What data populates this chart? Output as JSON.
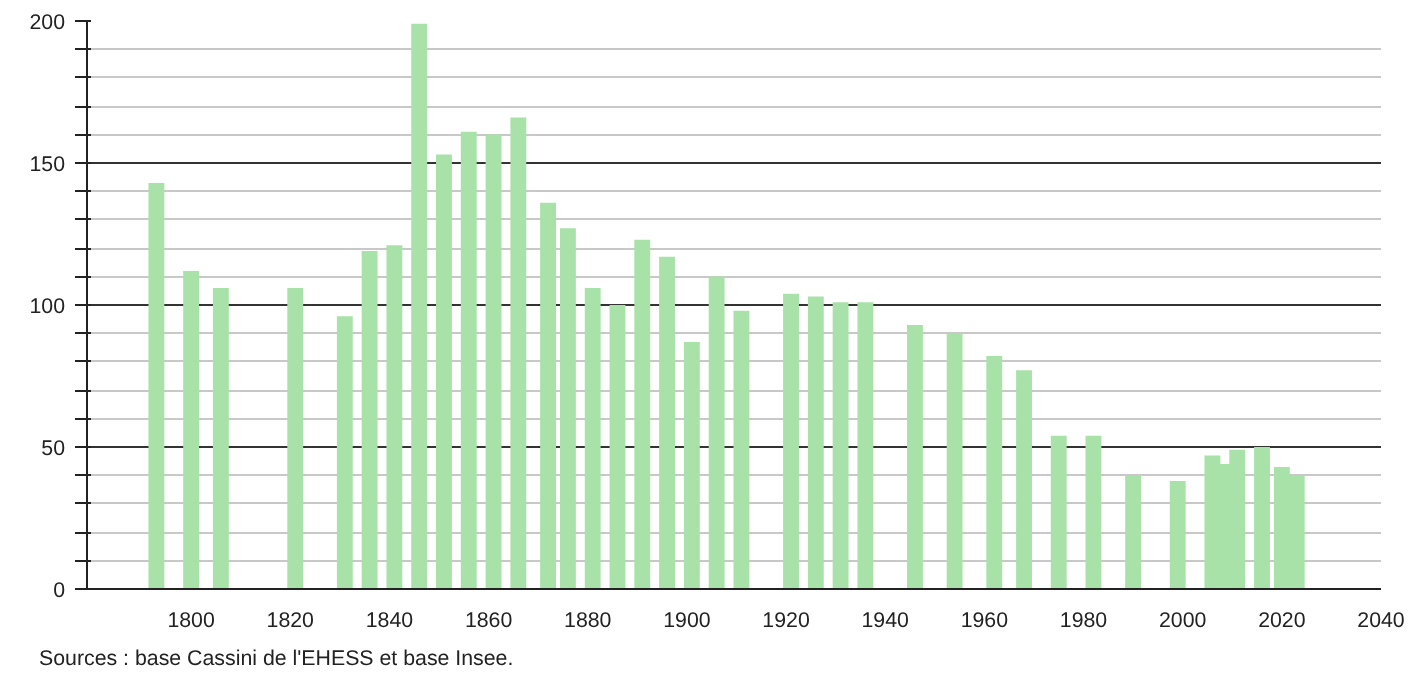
{
  "chart_data": {
    "type": "bar",
    "annotations": [
      "Sources : base Cassini de l'EHESS et base Insee."
    ],
    "x": [
      1793,
      1800,
      1806,
      1821,
      1831,
      1836,
      1841,
      1846,
      1851,
      1856,
      1861,
      1866,
      1872,
      1876,
      1881,
      1886,
      1891,
      1896,
      1901,
      1906,
      1911,
      1921,
      1926,
      1931,
      1936,
      1946,
      1954,
      1962,
      1968,
      1975,
      1982,
      1990,
      1999,
      2006,
      2008,
      2011,
      2016,
      2020,
      2023
    ],
    "series": [
      {
        "color": "#a8e2a8",
        "values": [
          143,
          112,
          106,
          106,
          96,
          119,
          121,
          199,
          153,
          161,
          160,
          166,
          136,
          127,
          106,
          100,
          123,
          117,
          87,
          110,
          98,
          104,
          103,
          101,
          101,
          93,
          90,
          82,
          77,
          54,
          54,
          40,
          38,
          47,
          44,
          49,
          50,
          43,
          40
        ]
      }
    ],
    "xlim": [
      1779,
      2040
    ],
    "xticks": [
      1800,
      1820,
      1840,
      1860,
      1880,
      1900,
      1920,
      1940,
      1960,
      1980,
      2000,
      2020,
      2040
    ],
    "ylim": [
      0,
      200
    ],
    "yticks": [
      0,
      {
        "value": 10,
        "label": null
      },
      {
        "value": 20,
        "label": null
      },
      {
        "value": 30,
        "label": null
      },
      {
        "value": 40,
        "label": null
      },
      50,
      {
        "value": 60,
        "label": null
      },
      {
        "value": 70,
        "label": null
      },
      {
        "value": 80,
        "label": null
      },
      {
        "value": 90,
        "label": null
      },
      100,
      {
        "value": 110,
        "label": null
      },
      {
        "value": 120,
        "label": null
      },
      {
        "value": 130,
        "label": null
      },
      {
        "value": 140,
        "label": null
      },
      150,
      {
        "value": 160,
        "label": null
      },
      {
        "value": 170,
        "label": null
      },
      {
        "value": 180,
        "label": null
      },
      {
        "value": 190,
        "label": null
      },
      200
    ],
    "grid": "y"
  }
}
